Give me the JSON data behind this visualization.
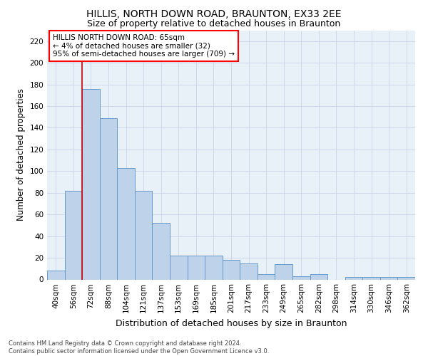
{
  "title": "HILLIS, NORTH DOWN ROAD, BRAUNTON, EX33 2EE",
  "subtitle": "Size of property relative to detached houses in Braunton",
  "xlabel": "Distribution of detached houses by size in Braunton",
  "ylabel": "Number of detached properties",
  "categories": [
    "40sqm",
    "56sqm",
    "72sqm",
    "88sqm",
    "104sqm",
    "121sqm",
    "137sqm",
    "153sqm",
    "169sqm",
    "185sqm",
    "201sqm",
    "217sqm",
    "233sqm",
    "249sqm",
    "265sqm",
    "282sqm",
    "298sqm",
    "314sqm",
    "330sqm",
    "346sqm",
    "362sqm"
  ],
  "values": [
    8,
    82,
    176,
    149,
    103,
    82,
    52,
    22,
    22,
    22,
    18,
    15,
    5,
    14,
    3,
    5,
    0,
    2,
    2,
    2,
    2
  ],
  "bar_color": "#bed3e9",
  "bar_edge_color": "#6699cc",
  "vline_color": "#cc0000",
  "vline_pos": 1.5,
  "ylim": [
    0,
    230
  ],
  "yticks": [
    0,
    20,
    40,
    60,
    80,
    100,
    120,
    140,
    160,
    180,
    200,
    220
  ],
  "annotation_box_text": "HILLIS NORTH DOWN ROAD: 65sqm\n← 4% of detached houses are smaller (32)\n95% of semi-detached houses are larger (709) →",
  "bg_color": "#ffffff",
  "plot_bg_color": "#e8f0f8",
  "grid_color": "#c8d4e8",
  "footnote": "Contains HM Land Registry data © Crown copyright and database right 2024.\nContains public sector information licensed under the Open Government Licence v3.0.",
  "title_fontsize": 10,
  "subtitle_fontsize": 9,
  "xlabel_fontsize": 9,
  "ylabel_fontsize": 8.5,
  "tick_fontsize": 7.5,
  "annot_fontsize": 7.5,
  "footnote_fontsize": 6
}
